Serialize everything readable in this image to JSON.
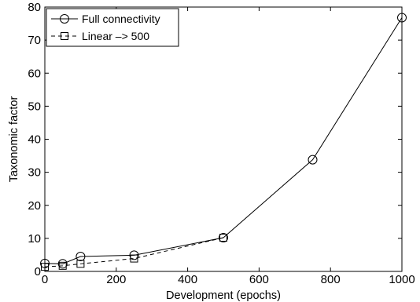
{
  "chart_data": {
    "type": "line",
    "title": "",
    "xlabel": "Development (epochs)",
    "ylabel": "Taxonomic factor",
    "xlim": [
      0,
      1000
    ],
    "ylim": [
      0,
      80
    ],
    "xticks": [
      0,
      200,
      400,
      600,
      800,
      1000
    ],
    "yticks": [
      0,
      10,
      20,
      30,
      40,
      50,
      60,
      70,
      80
    ],
    "grid": false,
    "legend_position": "top-left",
    "series": [
      {
        "name": "Full connectivity",
        "line_style": "solid",
        "marker": "circle",
        "color": "#000000",
        "x": [
          0,
          50,
          100,
          250,
          500,
          750,
          1000
        ],
        "y": [
          2.4,
          2.3,
          4.5,
          4.9,
          10.2,
          33.8,
          76.8
        ]
      },
      {
        "name": "Linear –> 500",
        "line_style": "dashed",
        "marker": "square",
        "color": "#000000",
        "x": [
          0,
          50,
          100,
          250,
          500
        ],
        "y": [
          1.4,
          1.7,
          2.3,
          3.9,
          10.2
        ]
      }
    ]
  }
}
